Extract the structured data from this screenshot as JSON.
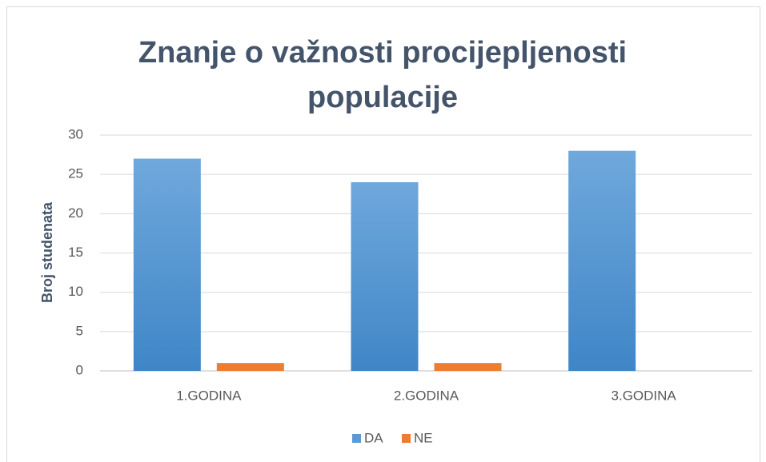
{
  "chart_data": {
    "type": "bar",
    "title": "Znanje o važnosti procijepljenosti populacije",
    "ylabel": "Broj studenata",
    "categories": [
      "1.GODINA",
      "2.GODINA",
      "3.GODINA"
    ],
    "series": [
      {
        "name": "DA",
        "color": "#5b9bd5",
        "values": [
          27,
          24,
          28
        ]
      },
      {
        "name": "NE",
        "color": "#ed7d31",
        "values": [
          1,
          1,
          0
        ]
      }
    ],
    "ylim": [
      0,
      30
    ],
    "yticks": [
      0,
      5,
      10,
      15,
      20,
      25,
      30
    ],
    "grid": true,
    "legend": "bottom"
  }
}
